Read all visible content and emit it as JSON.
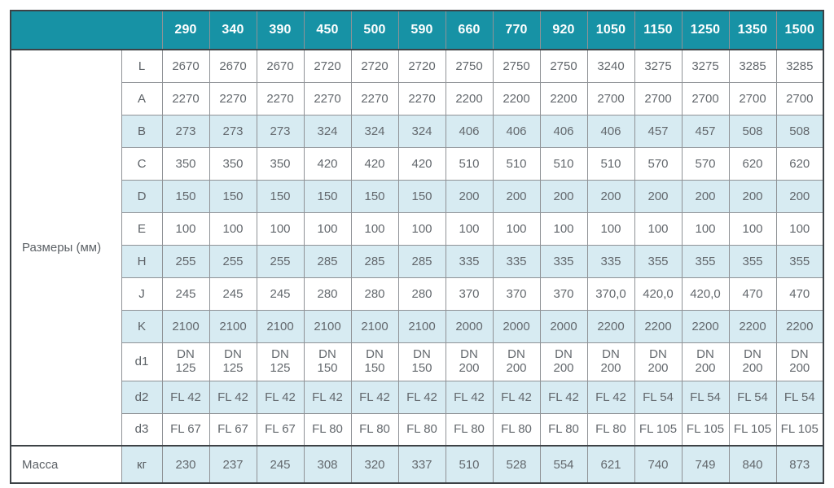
{
  "table": {
    "section_label_dimensions": "Размеры (мм)",
    "section_label_mass": "Масса",
    "header": [
      "290",
      "340",
      "390",
      "450",
      "500",
      "590",
      "660",
      "770",
      "920",
      "1050",
      "1150",
      "1250",
      "1350",
      "1500"
    ],
    "rows": [
      {
        "label": "L",
        "shaded": false,
        "values": [
          "2670",
          "2670",
          "2670",
          "2720",
          "2720",
          "2720",
          "2750",
          "2750",
          "2750",
          "3240",
          "3275",
          "3275",
          "3285",
          "3285"
        ]
      },
      {
        "label": "A",
        "shaded": false,
        "values": [
          "2270",
          "2270",
          "2270",
          "2270",
          "2270",
          "2270",
          "2200",
          "2200",
          "2200",
          "2700",
          "2700",
          "2700",
          "2700",
          "2700"
        ]
      },
      {
        "label": "B",
        "shaded": true,
        "values": [
          "273",
          "273",
          "273",
          "324",
          "324",
          "324",
          "406",
          "406",
          "406",
          "406",
          "457",
          "457",
          "508",
          "508"
        ]
      },
      {
        "label": "C",
        "shaded": false,
        "values": [
          "350",
          "350",
          "350",
          "420",
          "420",
          "420",
          "510",
          "510",
          "510",
          "510",
          "570",
          "570",
          "620",
          "620"
        ]
      },
      {
        "label": "D",
        "shaded": true,
        "values": [
          "150",
          "150",
          "150",
          "150",
          "150",
          "150",
          "200",
          "200",
          "200",
          "200",
          "200",
          "200",
          "200",
          "200"
        ]
      },
      {
        "label": "E",
        "shaded": false,
        "values": [
          "100",
          "100",
          "100",
          "100",
          "100",
          "100",
          "100",
          "100",
          "100",
          "100",
          "100",
          "100",
          "100",
          "100"
        ]
      },
      {
        "label": "H",
        "shaded": true,
        "values": [
          "255",
          "255",
          "255",
          "285",
          "285",
          "285",
          "335",
          "335",
          "335",
          "335",
          "355",
          "355",
          "355",
          "355"
        ]
      },
      {
        "label": "J",
        "shaded": false,
        "values": [
          "245",
          "245",
          "245",
          "280",
          "280",
          "280",
          "370",
          "370",
          "370",
          "370,0",
          "420,0",
          "420,0",
          "470",
          "470"
        ]
      },
      {
        "label": "K",
        "shaded": true,
        "values": [
          "2100",
          "2100",
          "2100",
          "2100",
          "2100",
          "2100",
          "2000",
          "2000",
          "2000",
          "2200",
          "2200",
          "2200",
          "2200",
          "2200"
        ]
      },
      {
        "label": "d1",
        "shaded": false,
        "twoline": true,
        "values": [
          "DN\n125",
          "DN\n125",
          "DN\n125",
          "DN\n150",
          "DN\n150",
          "DN\n150",
          "DN\n200",
          "DN\n200",
          "DN\n200",
          "DN\n200",
          "DN\n200",
          "DN\n200",
          "DN\n200",
          "DN\n200"
        ]
      },
      {
        "label": "d2",
        "shaded": true,
        "values": [
          "FL 42",
          "FL 42",
          "FL 42",
          "FL 42",
          "FL 42",
          "FL 42",
          "FL 42",
          "FL 42",
          "FL 42",
          "FL 42",
          "FL 54",
          "FL 54",
          "FL 54",
          "FL 54"
        ]
      },
      {
        "label": "d3",
        "shaded": false,
        "values": [
          "FL 67",
          "FL 67",
          "FL 67",
          "FL 80",
          "FL 80",
          "FL 80",
          "FL 80",
          "FL 80",
          "FL 80",
          "FL 80",
          "FL 105",
          "FL 105",
          "FL 105",
          "FL 105"
        ]
      }
    ],
    "mass_row": {
      "label": "кг",
      "shaded": true,
      "values": [
        "230",
        "237",
        "245",
        "308",
        "320",
        "337",
        "510",
        "528",
        "554",
        "621",
        "740",
        "749",
        "840",
        "873"
      ]
    },
    "colors": {
      "header_bg": "#1792a5",
      "header_text": "#ffffff",
      "shaded_row_bg": "#d7ebf2",
      "body_text": "#63686d",
      "frame_border": "#3d4246",
      "cell_border": "#8f9296"
    }
  }
}
